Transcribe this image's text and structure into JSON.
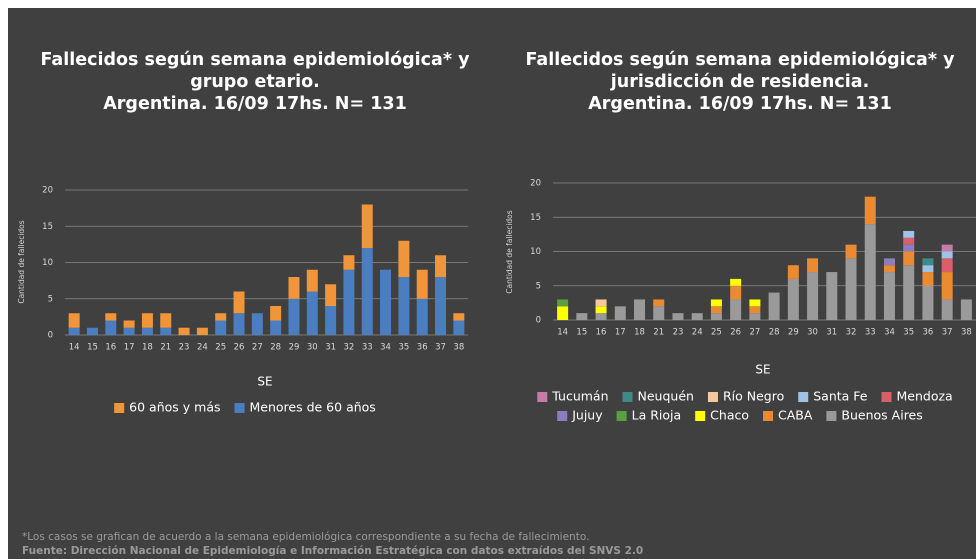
{
  "chart_data": [
    {
      "type": "stacked_bar",
      "title": [
        "Fallecidos según semana epidemiológica* y",
        "grupo etario.",
        "Argentina. 16/09 17hs. N= 131"
      ],
      "x_label": "SE",
      "y_label": "Cantidad de fallecidos",
      "categories": [
        "14",
        "15",
        "16",
        "17",
        "18",
        "21",
        "23",
        "24",
        "25",
        "26",
        "27",
        "28",
        "29",
        "30",
        "31",
        "32",
        "33",
        "34",
        "35",
        "36",
        "37",
        "38"
      ],
      "ylim": [
        0,
        20
      ],
      "yticks": [
        0,
        5,
        10,
        15,
        20
      ],
      "grid": true,
      "series": [
        {
          "name": "60 años y más",
          "color": "#f0953a",
          "values": [
            2,
            0,
            1,
            1,
            2,
            2,
            1,
            1,
            1,
            3,
            0,
            2,
            3,
            3,
            3,
            2,
            6,
            0,
            5,
            4,
            3,
            1
          ]
        },
        {
          "name": "Menores de 60 años",
          "color": "#4a7ec0",
          "values": [
            1,
            1,
            2,
            1,
            1,
            1,
            0,
            0,
            2,
            3,
            3,
            2,
            5,
            6,
            4,
            9,
            12,
            9,
            8,
            5,
            8,
            2
          ]
        }
      ]
    },
    {
      "type": "stacked_bar",
      "title": [
        "Fallecidos según semana epidemiológica* y",
        "jurisdicción de residencia.",
        "Argentina. 16/09 17hs. N= 131"
      ],
      "x_label": "SE",
      "y_label": "Cantidad de fallecidos",
      "categories": [
        "14",
        "15",
        "16",
        "17",
        "18",
        "21",
        "23",
        "24",
        "25",
        "26",
        "27",
        "28",
        "29",
        "30",
        "31",
        "32",
        "33",
        "34",
        "35",
        "36",
        "37",
        "38"
      ],
      "ylim": [
        0,
        20
      ],
      "yticks": [
        0,
        5,
        10,
        15,
        20
      ],
      "grid": true,
      "series": [
        {
          "name": "Tucumán",
          "color": "#c87aa8",
          "values": [
            0,
            0,
            0,
            0,
            0,
            0,
            0,
            0,
            0,
            0,
            0,
            0,
            0,
            0,
            0,
            0,
            0,
            0,
            0,
            0,
            1,
            0
          ]
        },
        {
          "name": "Neuquén",
          "color": "#3e8a8a",
          "values": [
            0,
            0,
            0,
            0,
            0,
            0,
            0,
            0,
            0,
            0,
            0,
            0,
            0,
            0,
            0,
            0,
            0,
            0,
            0,
            1,
            0,
            0
          ]
        },
        {
          "name": "Río Negro",
          "color": "#f6c8a0",
          "values": [
            0,
            0,
            1,
            0,
            0,
            0,
            0,
            0,
            0,
            0,
            0,
            0,
            0,
            0,
            0,
            0,
            0,
            0,
            0,
            0,
            0,
            0
          ]
        },
        {
          "name": "Santa Fe",
          "color": "#9dc3e6",
          "values": [
            0,
            0,
            0,
            0,
            0,
            0,
            0,
            0,
            0,
            0,
            0,
            0,
            0,
            0,
            0,
            0,
            0,
            0,
            1,
            1,
            1,
            0
          ]
        },
        {
          "name": "Mendoza",
          "color": "#d9606a",
          "values": [
            0,
            0,
            0,
            0,
            0,
            0,
            0,
            0,
            0,
            0,
            0,
            0,
            0,
            0,
            0,
            0,
            0,
            0,
            1,
            0,
            2,
            0
          ]
        },
        {
          "name": "Jujuy",
          "color": "#8e7cc3",
          "values": [
            0,
            0,
            0,
            0,
            0,
            0,
            0,
            0,
            0,
            0,
            0,
            0,
            0,
            0,
            0,
            0,
            0,
            1,
            1,
            0,
            0,
            0
          ]
        },
        {
          "name": "La Rioja",
          "color": "#5aa040",
          "values": [
            1,
            0,
            0,
            0,
            0,
            0,
            0,
            0,
            0,
            0,
            0,
            0,
            0,
            0,
            0,
            0,
            0,
            0,
            0,
            0,
            0,
            0
          ]
        },
        {
          "name": "Chaco",
          "color": "#ffff00",
          "values": [
            2,
            0,
            1,
            0,
            0,
            0,
            0,
            0,
            1,
            1,
            1,
            0,
            0,
            0,
            0,
            0,
            0,
            0,
            0,
            0,
            0,
            0
          ]
        },
        {
          "name": "CABA",
          "color": "#ea8a33",
          "values": [
            0,
            0,
            0,
            0,
            0,
            1,
            0,
            0,
            1,
            2,
            1,
            0,
            2,
            2,
            0,
            2,
            4,
            1,
            2,
            2,
            4,
            0
          ]
        },
        {
          "name": "Buenos Aires",
          "color": "#9a9a9a",
          "values": [
            0,
            1,
            1,
            2,
            3,
            2,
            1,
            1,
            1,
            3,
            1,
            4,
            6,
            7,
            7,
            9,
            14,
            7,
            8,
            5,
            3,
            3
          ]
        }
      ]
    }
  ],
  "footnote": "*Los casos se grafican de acuerdo a la semana epidemiológica correspondiente a su fecha de fallecimiento.",
  "source": "Fuente: Dirección Nacional de Epidemiología e Información Estratégica con datos extraídos del SNVS 2.0"
}
